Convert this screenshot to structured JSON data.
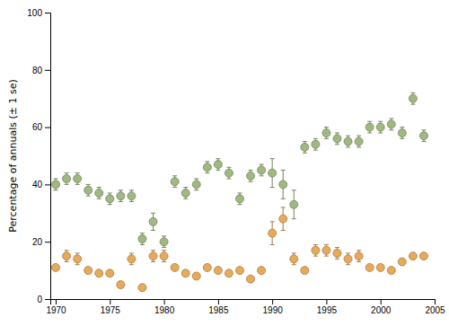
{
  "chart_data": {
    "type": "scatter",
    "x": [
      1970,
      1971,
      1972,
      1973,
      1974,
      1975,
      1976,
      1977,
      1978,
      1979,
      1980,
      1981,
      1982,
      1983,
      1984,
      1985,
      1986,
      1987,
      1988,
      1989,
      1990,
      1991,
      1992,
      1993,
      1994,
      1995,
      1996,
      1997,
      1998,
      1999,
      2000,
      2001,
      2002,
      2003,
      2004
    ],
    "series": [
      {
        "color": "#a0b882",
        "values": [
          40,
          42,
          42,
          38,
          37,
          35,
          36,
          36,
          21,
          27,
          20,
          41,
          37,
          40,
          46,
          47,
          44,
          35,
          43,
          45,
          44,
          40,
          33,
          53,
          54,
          58,
          56,
          55,
          55,
          60,
          60,
          61,
          58,
          70,
          57
        ],
        "errors": [
          2,
          2,
          2,
          2,
          2,
          2,
          2,
          2,
          2,
          3,
          2,
          2,
          2,
          2,
          2,
          2,
          2,
          2,
          2,
          2,
          5,
          5,
          5,
          2,
          2,
          2,
          2,
          2,
          2,
          2,
          2,
          2,
          2,
          2,
          2
        ]
      },
      {
        "color": "#e8aa5a",
        "values": [
          11,
          15,
          14,
          10,
          9,
          9,
          5,
          14,
          4,
          15,
          15,
          11,
          9,
          8,
          11,
          10,
          9,
          10,
          7,
          10,
          23,
          28,
          14,
          10,
          17,
          17,
          16,
          14,
          15,
          11,
          11,
          10,
          13,
          15,
          15
        ],
        "errors": [
          1,
          2,
          2,
          1,
          1,
          1,
          1,
          2,
          1,
          2,
          2,
          1,
          1,
          1,
          1,
          1,
          1,
          1,
          1,
          1,
          4,
          4,
          2,
          1,
          2,
          2,
          2,
          2,
          2,
          1,
          1,
          1,
          1,
          1,
          1
        ]
      }
    ],
    "ylabel": "Percentage of annuals (± 1 se)",
    "xlim": [
      1969.5,
      2005
    ],
    "ylim": [
      0,
      100
    ],
    "xticks": [
      1970,
      1975,
      1980,
      1985,
      1990,
      1995,
      2000,
      2005
    ],
    "yticks": [
      0,
      20,
      40,
      60,
      80,
      100
    ],
    "grid": false
  }
}
